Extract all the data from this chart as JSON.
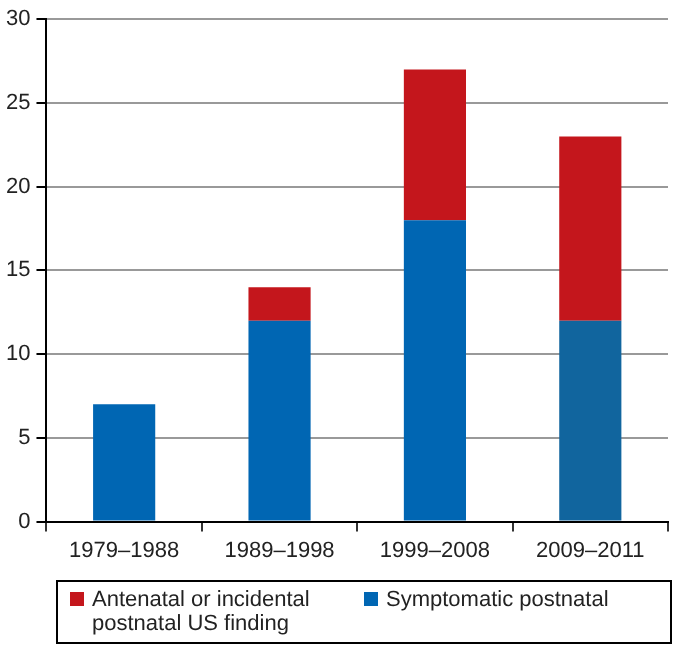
{
  "chart_data": {
    "type": "bar",
    "stacked": true,
    "categories": [
      "1979–1988",
      "1989–1998",
      "1999–2008",
      "2009–2011"
    ],
    "series": [
      {
        "name": "Symptomatic postnatal",
        "color": "#0066b3",
        "colors": [
          "#0066b3",
          "#0066b3",
          "#0066b3",
          "#11659e"
        ],
        "values": [
          7,
          12,
          18,
          12
        ]
      },
      {
        "name": "Antenatal or incidental postnatal US finding",
        "color": "#c4161c",
        "values": [
          null,
          2,
          9,
          11
        ]
      }
    ],
    "ylim": [
      0,
      30
    ],
    "yticks": [
      0,
      5,
      10,
      15,
      20,
      25,
      30
    ],
    "grid": "y",
    "legend": "bottom"
  }
}
